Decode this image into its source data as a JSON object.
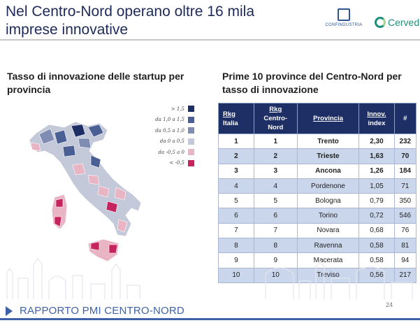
{
  "header": {
    "title_line1": "Nel Centro-Nord operano oltre 16 mila",
    "title_line2": "imprese innovative"
  },
  "logos": {
    "confindustria": "CONFINDUSTRIA",
    "cerved": "Cerved"
  },
  "left_panel": {
    "title": "Tasso di innovazione delle startup per provincia",
    "legend": [
      {
        "label": "> 1,5",
        "color": "#1e2f66"
      },
      {
        "label": "da 1,0 a 1,5",
        "color": "#4a5f94"
      },
      {
        "label": "da 0,5 a 1,0",
        "color": "#7f8db3"
      },
      {
        "label": "da 0 a 0,5",
        "color": "#c4c9da"
      },
      {
        "label": "da -0,5 a 0",
        "color": "#e9b4c3"
      },
      {
        "label": "< -0,5",
        "color": "#c6245e"
      }
    ]
  },
  "right_panel": {
    "title": "Prime 10 province del Centro-Nord per tasso di innovazione",
    "columns": {
      "rkg_italia_1": "Rkg",
      "rkg_italia_2": "Italia",
      "rkg_cn_1": "Rkg",
      "rkg_cn_2": "Centro-",
      "rkg_cn_3": "Nord",
      "provincia": "Provincia",
      "index_1": "Innov.",
      "index_2": "index",
      "count": "#"
    },
    "rows": [
      {
        "it": "1",
        "cn": "1",
        "prov": "Trento",
        "idx": "2,30",
        "n": "232"
      },
      {
        "it": "2",
        "cn": "2",
        "prov": "Trieste",
        "idx": "1,63",
        "n": "70"
      },
      {
        "it": "3",
        "cn": "3",
        "prov": "Ancona",
        "idx": "1,26",
        "n": "184"
      },
      {
        "it": "4",
        "cn": "4",
        "prov": "Pordenone",
        "idx": "1,05",
        "n": "71"
      },
      {
        "it": "5",
        "cn": "5",
        "prov": "Bologna",
        "idx": "0,79",
        "n": "350"
      },
      {
        "it": "6",
        "cn": "6",
        "prov": "Torino",
        "idx": "0,72",
        "n": "546"
      },
      {
        "it": "7",
        "cn": "7",
        "prov": "Novara",
        "idx": "0,68",
        "n": "76"
      },
      {
        "it": "8",
        "cn": "8",
        "prov": "Ravenna",
        "idx": "0,58",
        "n": "81"
      },
      {
        "it": "9",
        "cn": "9",
        "prov": "Macerata",
        "idx": "0,58",
        "n": "94"
      },
      {
        "it": "10",
        "cn": "10",
        "prov": "Treviso",
        "idx": "0,56",
        "n": "217"
      }
    ]
  },
  "footer": {
    "label_light": "RAPPORTO PMI",
    "label_bold": "CENTRO-NORD",
    "page": "24"
  }
}
